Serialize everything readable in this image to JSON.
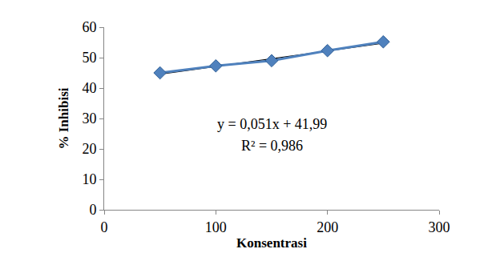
{
  "chart_data": {
    "type": "scatter",
    "x_label": "Konsentrasi",
    "y_label": "% Inhibisi",
    "x": [
      50,
      100,
      150,
      200,
      250
    ],
    "series": [
      {
        "values": [
          45.0,
          47.3,
          49.0,
          52.3,
          55.2
        ],
        "color": "#4f81bd",
        "marker": "diamond",
        "line_style": "solid"
      },
      {
        "x": [
          50,
          250
        ],
        "values": [
          44.54,
          54.74
        ],
        "color": "#000000",
        "line_style": "solid"
      }
    ],
    "annotations": [
      "y = 0,051x + 41,99",
      "R² = 0,986"
    ],
    "xlim": [
      0,
      300
    ],
    "xticks": [
      0,
      100,
      200,
      300
    ],
    "ylim": [
      0,
      60
    ],
    "yticks": [
      0,
      10,
      20,
      30,
      40,
      50,
      60
    ],
    "grid": false
  }
}
